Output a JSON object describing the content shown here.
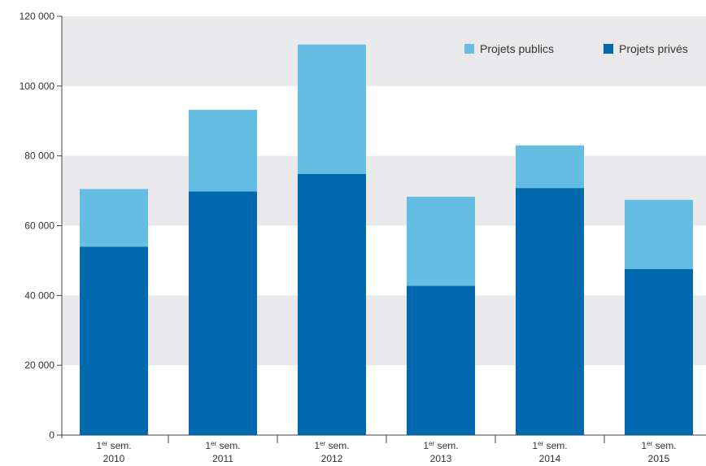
{
  "chart_data": {
    "type": "bar",
    "stacked": true,
    "categories": [
      {
        "prefix": "1",
        "sup": "er",
        "rest": " sem.",
        "year": "2010"
      },
      {
        "prefix": "1",
        "sup": "er",
        "rest": " sem.",
        "year": "2011"
      },
      {
        "prefix": "1",
        "sup": "er",
        "rest": " sem.",
        "year": "2012"
      },
      {
        "prefix": "1",
        "sup": "er",
        "rest": " sem.",
        "year": "2013"
      },
      {
        "prefix": "1",
        "sup": "er",
        "rest": " sem.",
        "year": "2014"
      },
      {
        "prefix": "1",
        "sup": "er",
        "rest": " sem.",
        "year": "2015"
      }
    ],
    "series": [
      {
        "name": "Projets privés",
        "color": "#0068ad",
        "values": [
          54000,
          69800,
          74800,
          42800,
          70800,
          47600
        ]
      },
      {
        "name": "Projets publics",
        "color": "#66bde3",
        "values": [
          16500,
          23400,
          37100,
          25500,
          12200,
          19800
        ]
      }
    ],
    "legend_order": [
      1,
      0
    ],
    "ylim": [
      0,
      120000
    ],
    "yticks": [
      0,
      20000,
      40000,
      60000,
      80000,
      100000,
      120000
    ],
    "ytick_labels": [
      "0",
      "20 000",
      "40 000",
      "60 000",
      "80 000",
      "100 000",
      "120 000"
    ],
    "band_color": "#e9e9ec",
    "grid": "alternating bands",
    "legend_position": "top-right",
    "title": "",
    "xlabel": "",
    "ylabel": ""
  }
}
